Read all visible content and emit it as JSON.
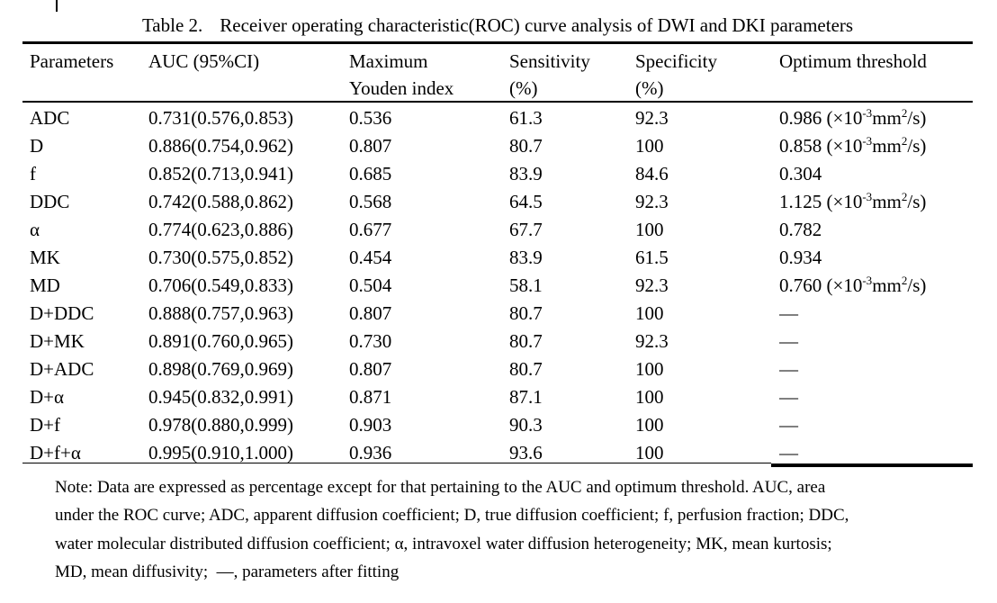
{
  "colors": {
    "background": "#ffffff",
    "text": "#000000",
    "rule": "#000000"
  },
  "caption": {
    "label": "Table 2.",
    "text": "Receiver operating characteristic(ROC) curve analysis of DWI and DKI parameters"
  },
  "table": {
    "columns": [
      {
        "id": "parameters",
        "line1": "Parameters",
        "line2": ""
      },
      {
        "id": "auc",
        "line1": "AUC (95%CI)",
        "line2": ""
      },
      {
        "id": "youden",
        "line1": "Maximum",
        "line2": "Youden index"
      },
      {
        "id": "sensitivity",
        "line1": "Sensitivity",
        "line2": "(%)"
      },
      {
        "id": "specificity",
        "line1": "Specificity",
        "line2": "(%)"
      },
      {
        "id": "threshold",
        "line1": "Optimum threshold",
        "line2": ""
      }
    ],
    "rows": [
      [
        "ADC",
        "0.731(0.576,0.853)",
        "0.536",
        "61.3",
        "92.3",
        "0.986 (×10^{-3}mm^{2}/s)"
      ],
      [
        "D",
        "0.886(0.754,0.962)",
        "0.807",
        "80.7",
        "100",
        "0.858 (×10^{-3}mm^{2}/s)"
      ],
      [
        "f",
        "0.852(0.713,0.941)",
        "0.685",
        "83.9",
        "84.6",
        "0.304"
      ],
      [
        "DDC",
        "0.742(0.588,0.862)",
        "0.568",
        "64.5",
        "92.3",
        "1.125 (×10^{-3}mm^{2}/s)"
      ],
      [
        "α",
        "0.774(0.623,0.886)",
        "0.677",
        "67.7",
        "100",
        "0.782"
      ],
      [
        "MK",
        "0.730(0.575,0.852)",
        "0.454",
        "83.9",
        "61.5",
        "0.934"
      ],
      [
        "MD",
        "0.706(0.549,0.833)",
        "0.504",
        "58.1",
        "92.3",
        "0.760 (×10^{-3}mm^{2}/s)"
      ],
      [
        "D+DDC",
        "0.888(0.757,0.963)",
        "0.807",
        "80.7",
        "100",
        "—"
      ],
      [
        "D+MK",
        "0.891(0.760,0.965)",
        "0.730",
        "80.7",
        "92.3",
        "—"
      ],
      [
        "D+ADC",
        "0.898(0.769,0.969)",
        "0.807",
        "80.7",
        "100",
        "—"
      ],
      [
        "D+α",
        "0.945(0.832,0.991)",
        "0.871",
        "87.1",
        "100",
        "—"
      ],
      [
        "D+f",
        "0.978(0.880,0.999)",
        "0.903",
        "90.3",
        "100",
        "—"
      ],
      [
        "D+f+α",
        "0.995(0.910,1.000)",
        "0.936",
        "93.6",
        "100",
        "—"
      ]
    ]
  },
  "note": {
    "lines": [
      "Note: Data are expressed as percentage except for that pertaining to the AUC and optimum threshold. AUC, area",
      "under the ROC curve; ADC, apparent diffusion coefficient; D, true diffusion coefficient; f, perfusion fraction; DDC,",
      "water molecular distributed diffusion coefficient; α, intravoxel water diffusion heterogeneity; MK, mean kurtosis;",
      "MD, mean diffusivity;  —, parameters after fitting"
    ]
  }
}
